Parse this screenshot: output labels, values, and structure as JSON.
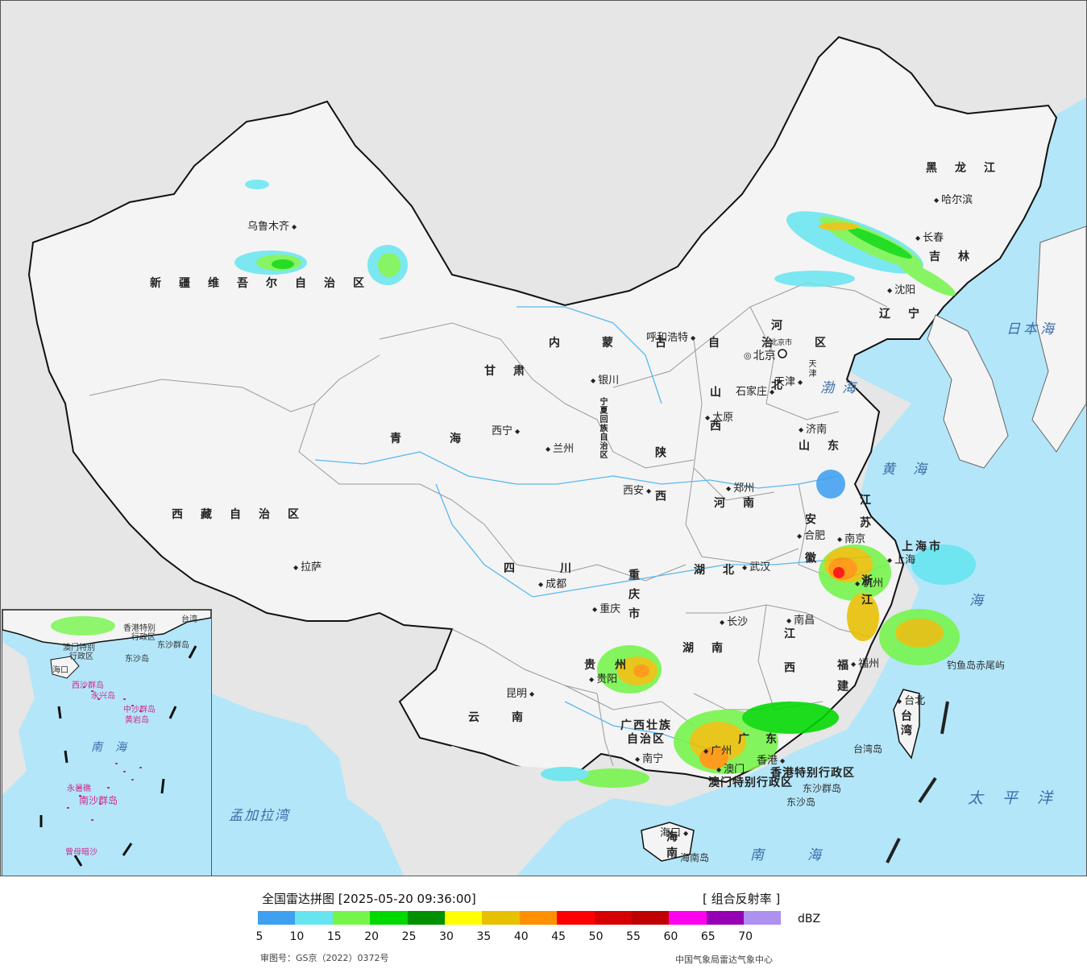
{
  "map": {
    "provinces": [
      {
        "id": "xinjiang",
        "label": "新疆维吾尔自治区"
      },
      {
        "id": "xizang",
        "label": "西藏自治区"
      },
      {
        "id": "qinghai",
        "label": "青海"
      },
      {
        "id": "gansu",
        "label": "甘肃"
      },
      {
        "id": "neimenggu",
        "label": "内蒙古自治区"
      },
      {
        "id": "heilongjiang",
        "label": "黑龙江"
      },
      {
        "id": "jilin",
        "label": "吉林"
      },
      {
        "id": "liaoning",
        "label": "辽宁"
      },
      {
        "id": "hebei",
        "label": "河北"
      },
      {
        "id": "shanxi",
        "label": "山西"
      },
      {
        "id": "shaanxi",
        "label": "陕西"
      },
      {
        "id": "ningxia",
        "label": "宁夏回族自治区"
      },
      {
        "id": "shandong",
        "label": "山东"
      },
      {
        "id": "henan",
        "label": "河南"
      },
      {
        "id": "jiangsu",
        "label": "江苏"
      },
      {
        "id": "anhui",
        "label": "安徽"
      },
      {
        "id": "hubei",
        "label": "湖北"
      },
      {
        "id": "sichuan",
        "label": "四川"
      },
      {
        "id": "chongqing",
        "label": "重庆市"
      },
      {
        "id": "zhejiang",
        "label": "浙江"
      },
      {
        "id": "shanghai",
        "label": "上海市"
      },
      {
        "id": "jiangxi",
        "label": "江西"
      },
      {
        "id": "hunan",
        "label": "湖南"
      },
      {
        "id": "guizhou",
        "label": "贵州"
      },
      {
        "id": "yunnan",
        "label": "云南"
      },
      {
        "id": "fujian",
        "label": "福建"
      },
      {
        "id": "guangxi",
        "label": "广西壮族自治区"
      },
      {
        "id": "guangdong",
        "label": "广东"
      },
      {
        "id": "taiwan",
        "label": "台湾"
      },
      {
        "id": "hainan",
        "label": "海南"
      },
      {
        "id": "beijing",
        "label": "北京市"
      },
      {
        "id": "tianjin",
        "label": "天津"
      },
      {
        "id": "hongkong",
        "label": "香港特别行政区"
      },
      {
        "id": "macau",
        "label": "澳门特别行政区"
      }
    ],
    "cities": [
      {
        "id": "urumqi",
        "label": "乌鲁木齐"
      },
      {
        "id": "lhasa",
        "label": "拉萨"
      },
      {
        "id": "xining",
        "label": "西宁"
      },
      {
        "id": "lanzhou",
        "label": "兰州"
      },
      {
        "id": "yinchuan",
        "label": "银川"
      },
      {
        "id": "hohhot",
        "label": "呼和浩特"
      },
      {
        "id": "harbin",
        "label": "哈尔滨"
      },
      {
        "id": "changchun",
        "label": "长春"
      },
      {
        "id": "shenyang",
        "label": "沈阳"
      },
      {
        "id": "beijing",
        "label": "北京"
      },
      {
        "id": "tianjin",
        "label": "天津"
      },
      {
        "id": "shijiazhuang",
        "label": "石家庄"
      },
      {
        "id": "taiyuan",
        "label": "太原"
      },
      {
        "id": "jinan",
        "label": "济南"
      },
      {
        "id": "zhengzhou",
        "label": "郑州"
      },
      {
        "id": "xian",
        "label": "西安"
      },
      {
        "id": "hefei",
        "label": "合肥"
      },
      {
        "id": "nanjing",
        "label": "南京"
      },
      {
        "id": "shanghai",
        "label": "上海"
      },
      {
        "id": "hangzhou",
        "label": "杭州"
      },
      {
        "id": "wuhan",
        "label": "武汉"
      },
      {
        "id": "chengdu",
        "label": "成都"
      },
      {
        "id": "chongqing",
        "label": "重庆"
      },
      {
        "id": "changsha",
        "label": "长沙"
      },
      {
        "id": "nanchang",
        "label": "南昌"
      },
      {
        "id": "guiyang",
        "label": "贵阳"
      },
      {
        "id": "kunming",
        "label": "昆明"
      },
      {
        "id": "fuzhou",
        "label": "福州"
      },
      {
        "id": "taibei",
        "label": "台北"
      },
      {
        "id": "nanning",
        "label": "南宁"
      },
      {
        "id": "guangzhou",
        "label": "广州"
      },
      {
        "id": "xianggang",
        "label": "香港"
      },
      {
        "id": "aomen",
        "label": "澳门"
      },
      {
        "id": "haikou",
        "label": "海口"
      }
    ],
    "seas": [
      {
        "id": "bohai",
        "label": "渤海"
      },
      {
        "id": "huanghai",
        "label": "黄海"
      },
      {
        "id": "donghai",
        "label": "海"
      },
      {
        "id": "nanhai",
        "label": "南海"
      },
      {
        "id": "riben",
        "label": "日本海"
      },
      {
        "id": "taipingyang",
        "label": "太平洋"
      },
      {
        "id": "mengjiala",
        "label": "孟加拉湾"
      }
    ],
    "islands": [
      {
        "id": "diaoyu",
        "label": "钓鱼岛"
      },
      {
        "id": "chiwei",
        "label": "赤尾屿"
      },
      {
        "id": "taiwan_dao",
        "label": "台湾岛"
      },
      {
        "id": "dongsha_qundao",
        "label": "东沙群岛"
      },
      {
        "id": "dongsha_dao",
        "label": "东沙岛"
      },
      {
        "id": "hainan_dao",
        "label": "海南岛"
      }
    ],
    "inset_labels": [
      {
        "id": "hk",
        "label": "香港特别"
      },
      {
        "id": "hk2",
        "label": "行政区"
      },
      {
        "id": "mo",
        "label": "澳门特别"
      },
      {
        "id": "mo2",
        "label": "行政区"
      },
      {
        "id": "tw",
        "label": "台湾"
      },
      {
        "id": "dsqd",
        "label": "东沙群岛"
      },
      {
        "id": "dsd",
        "label": "东沙岛"
      },
      {
        "id": "hk_city",
        "label": "海口"
      },
      {
        "id": "xsqd",
        "label": "西沙群岛"
      },
      {
        "id": "yx",
        "label": "永兴岛"
      },
      {
        "id": "zsqd",
        "label": "中沙群岛"
      },
      {
        "id": "hyd",
        "label": "黄岩岛"
      },
      {
        "id": "nh",
        "label": "南海"
      },
      {
        "id": "ys",
        "label": "永暑礁"
      },
      {
        "id": "nsqd",
        "label": "南沙群岛"
      },
      {
        "id": "zmas",
        "label": "曾母暗沙"
      }
    ]
  },
  "radar_colors": {
    "cyan": "#66e5f0",
    "lightgreen": "#75f54a",
    "green": "#00d900",
    "darkgreen": "#009000",
    "yellow": "#ffff00",
    "gold": "#e7c000",
    "orange": "#ff9000",
    "red": "#ff0000"
  },
  "legend": {
    "title": "全国雷达拼图 [2025-05-20 09:36:00]",
    "product": "[ 组合反射率 ]",
    "unit": "dBZ",
    "colors": [
      "#3f9ff0",
      "#66e5f0",
      "#75f54a",
      "#00d900",
      "#009000",
      "#ffff00",
      "#e7c000",
      "#ff9000",
      "#ff0000",
      "#d60000",
      "#c00000",
      "#ff00f0",
      "#9600b4",
      "#ad90f0"
    ],
    "ticks": [
      "5",
      "10",
      "15",
      "20",
      "25",
      "30",
      "35",
      "40",
      "45",
      "50",
      "55",
      "60",
      "65",
      "70"
    ],
    "approval": "审图号：GS京（2022）0372号",
    "producer": "中国气象局雷达气象中心"
  }
}
